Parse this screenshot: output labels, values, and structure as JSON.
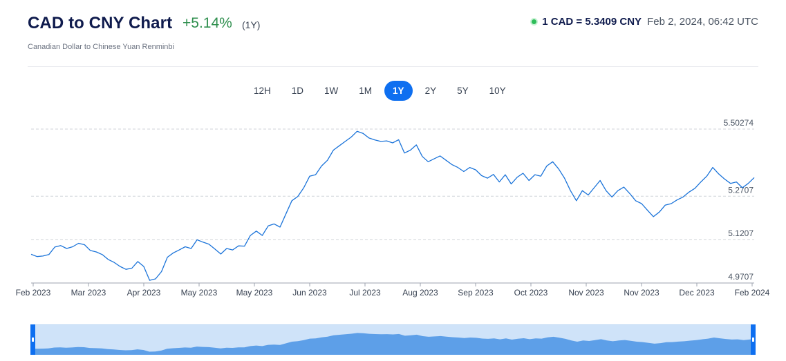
{
  "header": {
    "title": "CAD to CNY Chart",
    "change": "+5.14%",
    "change_period": "(1Y)",
    "subtitle": "Canadian Dollar to Chinese Yuan Renminbi",
    "rate_value": "1 CAD = 5.3409 CNY",
    "rate_time": "Feb 2, 2024, 06:42 UTC"
  },
  "tabs": [
    {
      "label": "12H",
      "active": false
    },
    {
      "label": "1D",
      "active": false
    },
    {
      "label": "1W",
      "active": false
    },
    {
      "label": "1M",
      "active": false
    },
    {
      "label": "1Y",
      "active": true
    },
    {
      "label": "2Y",
      "active": false
    },
    {
      "label": "5Y",
      "active": false
    },
    {
      "label": "10Y",
      "active": false
    }
  ],
  "colors": {
    "line": "#1a73d9",
    "accent": "#0e6ff0",
    "positive": "#2f8f4e",
    "navigator_fill": "#5d9fe8",
    "navigator_bg": "#cfe3f9",
    "grid": "#cfd3d8"
  },
  "chart_data": {
    "type": "line",
    "y_ticks": [
      "5.50274",
      "5.2707",
      "5.1207",
      "4.9707"
    ],
    "ylim": [
      4.9707,
      5.50274
    ],
    "x_labels": [
      "Feb 2023",
      "Mar 2023",
      "Apr 2023",
      "May 2023",
      "May 2023",
      "Jun 2023",
      "Jul 2023",
      "Aug 2023",
      "Sep 2023",
      "Oct 2023",
      "Nov 2023",
      "Nov 2023",
      "Dec 2023",
      "Feb 2024"
    ],
    "series": [
      {
        "x": [
          0,
          3,
          6,
          9,
          12,
          15,
          18,
          21,
          24,
          27,
          30,
          33,
          36,
          39,
          42,
          45,
          48,
          51,
          54,
          57,
          60,
          63,
          66,
          69,
          72,
          75,
          78,
          81,
          84,
          87,
          90,
          93,
          96,
          99,
          102,
          105,
          108,
          111,
          114,
          117,
          120,
          123,
          126,
          129,
          132,
          135,
          138,
          141,
          144,
          147,
          150,
          153,
          156,
          159,
          162,
          165,
          168,
          171,
          174,
          177,
          180,
          183,
          186,
          189,
          192,
          195,
          198,
          201,
          204,
          207,
          210,
          213,
          216,
          219,
          222,
          225,
          228,
          231,
          234,
          237,
          240,
          243,
          246,
          249,
          252,
          255,
          258,
          261,
          264,
          267,
          270,
          273,
          276,
          279,
          282,
          285,
          288,
          291,
          294,
          297,
          300,
          303,
          306,
          309,
          312,
          315,
          318,
          321,
          324,
          327,
          330,
          333,
          336,
          339,
          342,
          345,
          348,
          351,
          354,
          357,
          360,
          363,
          366
        ],
        "values": [
          5.07,
          5.062,
          5.064,
          5.069,
          5.095,
          5.1,
          5.09,
          5.096,
          5.108,
          5.103,
          5.083,
          5.078,
          5.069,
          5.052,
          5.042,
          5.028,
          5.018,
          5.022,
          5.045,
          5.028,
          4.98,
          4.985,
          5.01,
          5.06,
          5.075,
          5.085,
          5.096,
          5.09,
          5.12,
          5.112,
          5.105,
          5.088,
          5.071,
          5.09,
          5.085,
          5.099,
          5.098,
          5.135,
          5.15,
          5.135,
          5.168,
          5.175,
          5.164,
          5.21,
          5.255,
          5.27,
          5.3,
          5.34,
          5.345,
          5.375,
          5.395,
          5.43,
          5.445,
          5.46,
          5.475,
          5.495,
          5.488,
          5.472,
          5.465,
          5.46,
          5.462,
          5.455,
          5.466,
          5.42,
          5.43,
          5.448,
          5.408,
          5.39,
          5.4,
          5.41,
          5.395,
          5.38,
          5.37,
          5.356,
          5.37,
          5.362,
          5.342,
          5.333,
          5.346,
          5.32,
          5.345,
          5.313,
          5.336,
          5.35,
          5.325,
          5.345,
          5.34,
          5.375,
          5.39,
          5.365,
          5.333,
          5.29,
          5.255,
          5.29,
          5.275,
          5.3,
          5.325,
          5.29,
          5.268,
          5.29,
          5.302,
          5.28,
          5.255,
          5.245,
          5.222,
          5.2,
          5.216,
          5.24,
          5.245,
          5.258,
          5.268,
          5.285,
          5.298,
          5.32,
          5.34,
          5.37,
          5.348,
          5.33,
          5.315,
          5.32,
          5.3,
          5.315,
          5.335
        ]
      }
    ],
    "grid": true,
    "legend": "none"
  }
}
